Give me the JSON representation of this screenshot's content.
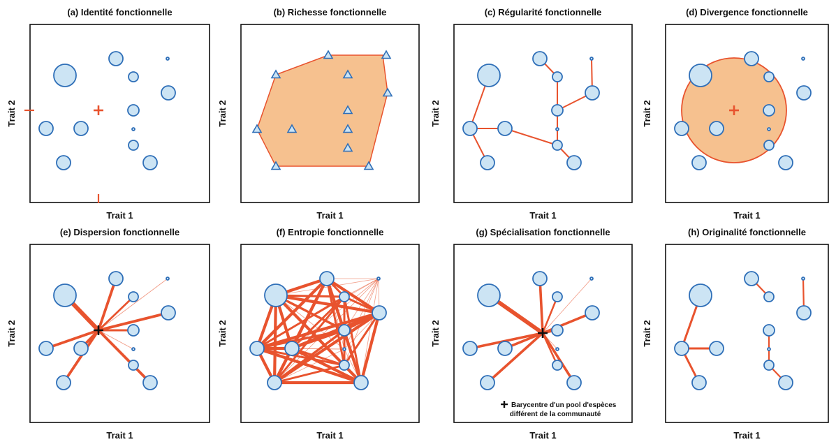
{
  "colors": {
    "point_fill": "#cce4f4",
    "point_stroke": "#2f6fb8",
    "accent": "#e8532e",
    "hull_fill": "#f6c18f",
    "frame": "#111111"
  },
  "axis_labels": {
    "x": "Trait 1",
    "y": "Trait 2"
  },
  "panels": [
    {
      "id": "a",
      "title": "(a) Identité fonctionnelle"
    },
    {
      "id": "b",
      "title": "(b) Richesse fonctionnelle"
    },
    {
      "id": "c",
      "title": "(c) Régularité fonctionnelle"
    },
    {
      "id": "d",
      "title": "(d) Divergence fonctionnelle"
    },
    {
      "id": "e",
      "title": "(e) Dispersion fonctionnelle"
    },
    {
      "id": "f",
      "title": "(f) Entropie fonctionnelle"
    },
    {
      "id": "g",
      "title": "(g) Spécialisation fonctionnelle"
    },
    {
      "id": "h",
      "title": "(h) Originalité fonctionnelle"
    }
  ],
  "legend": {
    "symbol": "plus-icon",
    "line1": "Barycentre d'un pool d'espèces",
    "line2": "différent de la communauté"
  }
}
